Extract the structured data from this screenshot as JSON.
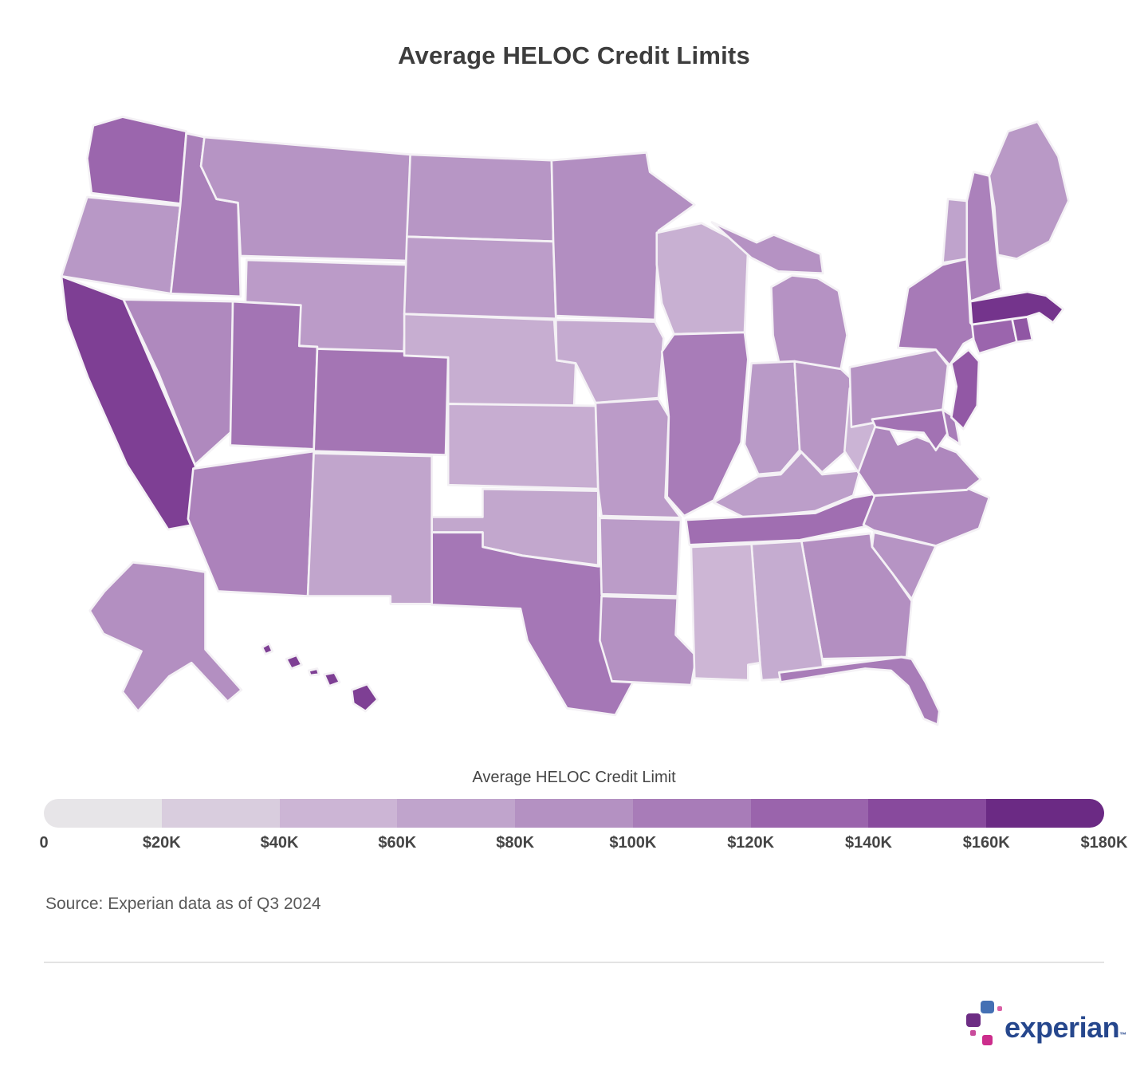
{
  "title": "Average HELOC Credit Limits",
  "legend": {
    "title": "Average HELOC Credit Limit",
    "ticks": [
      "0",
      "$20K",
      "$40K",
      "$60K",
      "$80K",
      "$100K",
      "$120K",
      "$140K",
      "$160K",
      "$180K"
    ],
    "max": 180000,
    "scale_colors": [
      "#e7e5e8",
      "#d9cdde",
      "#ccb5d5",
      "#c0a4cc",
      "#b491c2",
      "#a87cb8",
      "#9a64ac",
      "#884a9d",
      "#6b2a84"
    ]
  },
  "source": "Source: Experian data as of Q3 2024",
  "logo": {
    "text": "experian",
    "tm": "™",
    "wordmark_color": "#26478d",
    "block_colors": [
      "#4470b4",
      "#d95fa5",
      "#6d2d84",
      "#c84b9b",
      "#cc2d8c"
    ]
  },
  "chart_data": {
    "type": "choropleth_map",
    "geography": "United States by state",
    "metric": "Average HELOC Credit Limit",
    "unit": "USD",
    "title": "Average HELOC Credit Limits",
    "legend_title": "Average HELOC Credit Limit",
    "scale": {
      "min": 0,
      "max": 180000,
      "tick_labels": [
        "0",
        "$20K",
        "$40K",
        "$60K",
        "$80K",
        "$100K",
        "$120K",
        "$140K",
        "$160K",
        "$180K"
      ]
    },
    "source": "Source: Experian data as of Q3 2024",
    "states": [
      {
        "code": "AL",
        "name": "Alabama",
        "value": 61000
      },
      {
        "code": "AK",
        "name": "Alaska",
        "value": 92000
      },
      {
        "code": "AZ",
        "name": "Arizona",
        "value": 104000
      },
      {
        "code": "AR",
        "name": "Arkansas",
        "value": 78000
      },
      {
        "code": "CA",
        "name": "California",
        "value": 157000
      },
      {
        "code": "CO",
        "name": "Colorado",
        "value": 116000
      },
      {
        "code": "CT",
        "name": "Connecticut",
        "value": 129000
      },
      {
        "code": "DE",
        "name": "Delaware",
        "value": 108000
      },
      {
        "code": "FL",
        "name": "Florida",
        "value": 110000
      },
      {
        "code": "GA",
        "name": "Georgia",
        "value": 92000
      },
      {
        "code": "HI",
        "name": "Hawaii",
        "value": 157000
      },
      {
        "code": "ID",
        "name": "Idaho",
        "value": 106000
      },
      {
        "code": "IL",
        "name": "Illinois",
        "value": 110000
      },
      {
        "code": "IN",
        "name": "Indiana",
        "value": 81000
      },
      {
        "code": "IA",
        "name": "Iowa",
        "value": 62000
      },
      {
        "code": "KS",
        "name": "Kansas",
        "value": 59000
      },
      {
        "code": "KY",
        "name": "Kentucky",
        "value": 76000
      },
      {
        "code": "LA",
        "name": "Louisiana",
        "value": 90000
      },
      {
        "code": "ME",
        "name": "Maine",
        "value": 82000
      },
      {
        "code": "MD",
        "name": "Maryland",
        "value": 118000
      },
      {
        "code": "MA",
        "name": "Massachusetts",
        "value": 164000
      },
      {
        "code": "MI",
        "name": "Michigan",
        "value": 89000
      },
      {
        "code": "MN",
        "name": "Minnesota",
        "value": 93000
      },
      {
        "code": "MS",
        "name": "Mississippi",
        "value": 49000
      },
      {
        "code": "MO",
        "name": "Missouri",
        "value": 79000
      },
      {
        "code": "MT",
        "name": "Montana",
        "value": 87000
      },
      {
        "code": "NE",
        "name": "Nebraska",
        "value": 58000
      },
      {
        "code": "NV",
        "name": "Nevada",
        "value": 98000
      },
      {
        "code": "NH",
        "name": "New Hampshire",
        "value": 105000
      },
      {
        "code": "NJ",
        "name": "New Jersey",
        "value": 139000
      },
      {
        "code": "NM",
        "name": "New Mexico",
        "value": 69000
      },
      {
        "code": "NY",
        "name": "New York",
        "value": 112000
      },
      {
        "code": "NC",
        "name": "North Carolina",
        "value": 97000
      },
      {
        "code": "ND",
        "name": "North Dakota",
        "value": 85000
      },
      {
        "code": "OH",
        "name": "Ohio",
        "value": 84000
      },
      {
        "code": "OK",
        "name": "Oklahoma",
        "value": 67000
      },
      {
        "code": "OR",
        "name": "Oregon",
        "value": 83000
      },
      {
        "code": "PA",
        "name": "Pennsylvania",
        "value": 88000
      },
      {
        "code": "RI",
        "name": "Rhode Island",
        "value": 141000
      },
      {
        "code": "SC",
        "name": "South Carolina",
        "value": 87000
      },
      {
        "code": "SD",
        "name": "South Dakota",
        "value": 77000
      },
      {
        "code": "TN",
        "name": "Tennessee",
        "value": 122000
      },
      {
        "code": "TX",
        "name": "Texas",
        "value": 114000
      },
      {
        "code": "UT",
        "name": "Utah",
        "value": 117000
      },
      {
        "code": "VT",
        "name": "Vermont",
        "value": 71000
      },
      {
        "code": "VA",
        "name": "Virginia",
        "value": 100000
      },
      {
        "code": "WA",
        "name": "Washington",
        "value": 128000
      },
      {
        "code": "WV",
        "name": "West Virginia",
        "value": 51000
      },
      {
        "code": "WI",
        "name": "Wisconsin",
        "value": 56000
      },
      {
        "code": "WY",
        "name": "Wyoming",
        "value": 79000
      }
    ]
  }
}
